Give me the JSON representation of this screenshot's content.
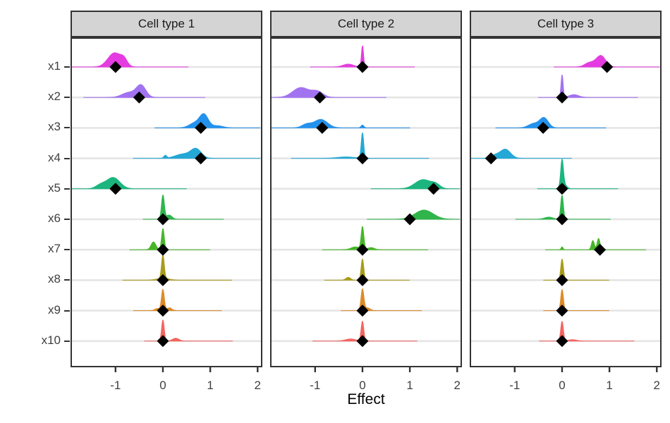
{
  "style": {
    "strip_bg": "#d4d4d4",
    "panel_border": "#333333",
    "gridline": "#e5e5e5",
    "axis_text": "#404040",
    "tick_mark": "#333333",
    "diamond": "#000000",
    "background": "#ffffff"
  },
  "chart_data": {
    "type": "ridgeline",
    "xlabel": "Effect",
    "x_ticks": [
      "-1",
      "0",
      "1",
      "2"
    ],
    "x_tick_values": [
      -1,
      0,
      1,
      2
    ],
    "xlim": [
      -1.95,
      2.1
    ],
    "grid": "horizontal-only",
    "y_categories": [
      "x1",
      "x2",
      "x3",
      "x4",
      "x5",
      "x6",
      "x7",
      "x8",
      "x9",
      "x10"
    ],
    "row_colors": [
      "#e43ce0",
      "#a273f0",
      "#2492ec",
      "#25a8d5",
      "#1cb57f",
      "#2fb54b",
      "#46b628",
      "#a89c1b",
      "#de8a28",
      "#f4655f"
    ],
    "facets": [
      {
        "title": "Cell type 1",
        "rows": [
          {
            "y": "x1",
            "point": -1.0,
            "density": [
              [
                -1.02,
                0.14,
                20
              ],
              [
                -0.82,
                0.07,
                8
              ]
            ]
          },
          {
            "y": "x2",
            "point": -0.5,
            "density": [
              [
                -0.46,
                0.1,
                17
              ],
              [
                -0.72,
                0.14,
                7
              ]
            ]
          },
          {
            "y": "x3",
            "point": 0.8,
            "density": [
              [
                0.87,
                0.09,
                18
              ],
              [
                0.68,
                0.12,
                7
              ],
              [
                1.15,
                0.12,
                3
              ]
            ]
          },
          {
            "y": "x4",
            "point": 0.8,
            "density": [
              [
                0.7,
                0.11,
                13
              ],
              [
                0.42,
                0.16,
                6
              ],
              [
                0.05,
                0.03,
                4
              ]
            ]
          },
          {
            "y": "x5",
            "point": -1.0,
            "density": [
              [
                -1.05,
                0.14,
                16
              ],
              [
                -1.32,
                0.1,
                5
              ]
            ]
          },
          {
            "y": "x6",
            "point": 0.0,
            "density": [
              [
                0.0,
                0.03,
                34
              ],
              [
                0.13,
                0.06,
                6
              ]
            ]
          },
          {
            "y": "x7",
            "point": 0.0,
            "density": [
              [
                0.0,
                0.028,
                30
              ],
              [
                -0.2,
                0.05,
                11
              ]
            ]
          },
          {
            "y": "x8",
            "point": 0.0,
            "density": [
              [
                0.0,
                0.028,
                33
              ],
              [
                0.0,
                0.12,
                3
              ]
            ]
          },
          {
            "y": "x9",
            "point": 0.0,
            "density": [
              [
                0.0,
                0.03,
                30
              ],
              [
                0.14,
                0.05,
                4
              ],
              [
                -0.12,
                0.05,
                3
              ]
            ]
          },
          {
            "y": "x10",
            "point": 0.0,
            "density": [
              [
                0.0,
                0.028,
                30
              ],
              [
                0.27,
                0.07,
                4
              ]
            ]
          }
        ]
      },
      {
        "title": "Cell type 2",
        "rows": [
          {
            "y": "x1",
            "point": 0.0,
            "density": [
              [
                0.0,
                0.022,
                30
              ],
              [
                -0.3,
                0.11,
                4
              ]
            ]
          },
          {
            "y": "x2",
            "point": -0.9,
            "density": [
              [
                -1.3,
                0.17,
                14
              ],
              [
                -0.95,
                0.12,
                8
              ]
            ]
          },
          {
            "y": "x3",
            "point": -0.85,
            "density": [
              [
                -0.88,
                0.14,
                12
              ],
              [
                -1.18,
                0.1,
                5
              ],
              [
                0.0,
                0.03,
                4
              ]
            ]
          },
          {
            "y": "x4",
            "point": 0.0,
            "density": [
              [
                0.0,
                0.026,
                36
              ],
              [
                -0.35,
                0.18,
                2
              ]
            ]
          },
          {
            "y": "x5",
            "point": 1.5,
            "density": [
              [
                1.28,
                0.17,
                13
              ],
              [
                1.55,
                0.09,
                5
              ]
            ]
          },
          {
            "y": "x6",
            "point": 1.0,
            "density": [
              [
                1.3,
                0.19,
                13
              ]
            ]
          },
          {
            "y": "x7",
            "point": 0.0,
            "density": [
              [
                0.0,
                0.028,
                32
              ],
              [
                -0.15,
                0.09,
                4
              ],
              [
                0.18,
                0.07,
                3
              ]
            ]
          },
          {
            "y": "x8",
            "point": 0.0,
            "density": [
              [
                0.0,
                0.028,
                30
              ],
              [
                -0.3,
                0.05,
                4
              ]
            ]
          },
          {
            "y": "x9",
            "point": 0.0,
            "density": [
              [
                0.0,
                0.03,
                30
              ],
              [
                0.1,
                0.06,
                4
              ]
            ]
          },
          {
            "y": "x10",
            "point": 0.0,
            "density": [
              [
                0.0,
                0.028,
                28
              ],
              [
                -0.25,
                0.11,
                3
              ]
            ]
          }
        ]
      },
      {
        "title": "Cell type 3",
        "rows": [
          {
            "y": "x1",
            "point": 0.95,
            "density": [
              [
                0.82,
                0.1,
                16
              ],
              [
                0.58,
                0.1,
                6
              ]
            ]
          },
          {
            "y": "x2",
            "point": 0.0,
            "density": [
              [
                0.0,
                0.022,
                32
              ],
              [
                0.25,
                0.1,
                4
              ]
            ]
          },
          {
            "y": "x3",
            "point": -0.4,
            "density": [
              [
                -0.38,
                0.09,
                14
              ],
              [
                -0.6,
                0.11,
                6
              ]
            ]
          },
          {
            "y": "x4",
            "point": -1.5,
            "density": [
              [
                -1.2,
                0.11,
                13
              ],
              [
                -1.42,
                0.08,
                4
              ]
            ]
          },
          {
            "y": "x5",
            "point": 0.0,
            "density": [
              [
                0.0,
                0.028,
                36
              ],
              [
                0.03,
                0.06,
                7
              ]
            ]
          },
          {
            "y": "x6",
            "point": 0.0,
            "density": [
              [
                0.0,
                0.028,
                34
              ],
              [
                -0.28,
                0.09,
                3
              ]
            ]
          },
          {
            "y": "x7",
            "point": 0.8,
            "density": [
              [
                0.65,
                0.03,
                13
              ],
              [
                0.77,
                0.03,
                16
              ],
              [
                0.0,
                0.02,
                4
              ]
            ]
          },
          {
            "y": "x8",
            "point": 0.0,
            "density": [
              [
                0.0,
                0.028,
                30
              ]
            ]
          },
          {
            "y": "x9",
            "point": 0.0,
            "density": [
              [
                0.0,
                0.028,
                30
              ]
            ]
          },
          {
            "y": "x10",
            "point": 0.0,
            "density": [
              [
                0.0,
                0.028,
                28
              ],
              [
                0.22,
                0.09,
                2
              ]
            ]
          }
        ]
      }
    ]
  }
}
